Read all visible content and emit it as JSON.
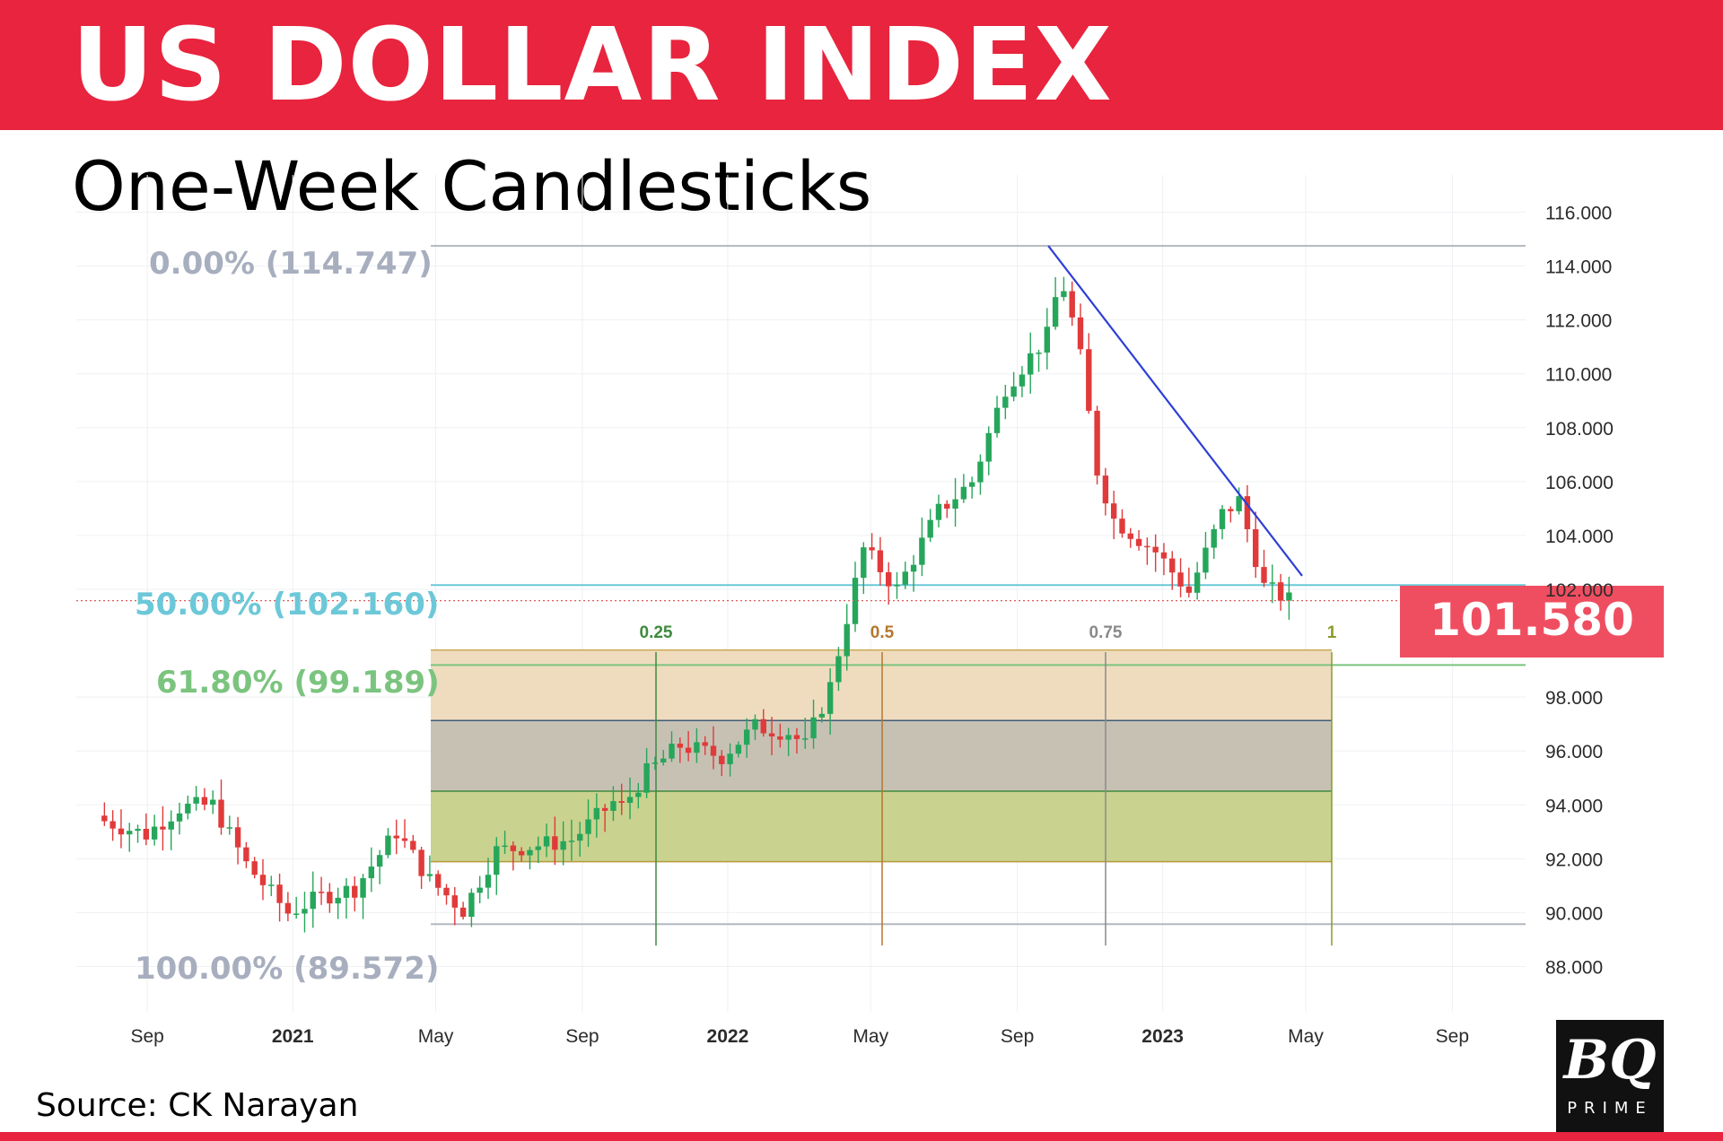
{
  "header": {
    "title": "US DOLLAR INDEX",
    "subtitle": "One-Week Candlesticks"
  },
  "footer": {
    "source": "Source: CK Narayan"
  },
  "logo": {
    "main": "BQ",
    "sub": "PRIME"
  },
  "colors": {
    "banner": "#e8243e",
    "up": "#26a65b",
    "down": "#e03a3a",
    "trendline": "#2e3fd6",
    "price_tag": "#ef4e60",
    "fib_50": "#6cc8d8",
    "fib_618": "#7bc47f",
    "fib_grey": "#a7aebe"
  },
  "chart_data": {
    "type": "candlestick",
    "ylim": [
      87.6,
      116.4
    ],
    "y_ticks": [
      "88.000",
      "90.000",
      "92.000",
      "94.000",
      "96.000",
      "98.000",
      "102.000",
      "104.000",
      "106.000",
      "108.000",
      "110.000",
      "112.000",
      "114.000",
      "116.000"
    ],
    "x_ticks": [
      "Sep",
      "2021",
      "May",
      "Sep",
      "2022",
      "May",
      "Sep",
      "2023",
      "May",
      "Sep"
    ],
    "current_price": "101.580",
    "fib_retracement": [
      {
        "label": "0.00% (114.747)",
        "level": 114.747
      },
      {
        "label": "50.00% (102.160)",
        "level": 102.16
      },
      {
        "label": "61.80% (99.189)",
        "level": 99.189
      },
      {
        "label": "100.00% (89.572)",
        "level": 89.572
      }
    ],
    "fib_time_zones": [
      "0.25",
      "0.5",
      "0.75",
      "1"
    ],
    "trendline": {
      "from": {
        "x": "2022-09-27",
        "y": 114.75
      },
      "to": {
        "x": "2023-04-28",
        "y": 102.5
      }
    },
    "ohlc_weekly_approx": [
      {
        "date": "2020-07-27",
        "close": 93.4
      },
      {
        "date": "2020-08-31",
        "close": 92.9
      },
      {
        "date": "2020-09-28",
        "close": 93.9
      },
      {
        "date": "2020-10-26",
        "close": 94.0
      },
      {
        "date": "2020-11-23",
        "close": 91.8
      },
      {
        "date": "2020-12-28",
        "close": 90.0
      },
      {
        "date": "2021-01-25",
        "close": 90.6
      },
      {
        "date": "2021-02-22",
        "close": 90.9
      },
      {
        "date": "2021-03-29",
        "close": 93.0
      },
      {
        "date": "2021-04-26",
        "close": 91.2
      },
      {
        "date": "2021-05-24",
        "close": 90.1
      },
      {
        "date": "2021-06-21",
        "close": 92.3
      },
      {
        "date": "2021-07-26",
        "close": 92.5
      },
      {
        "date": "2021-08-23",
        "close": 92.7
      },
      {
        "date": "2021-09-27",
        "close": 94.1
      },
      {
        "date": "2021-10-25",
        "close": 95.2
      },
      {
        "date": "2021-11-22",
        "close": 96.2
      },
      {
        "date": "2021-12-27",
        "close": 95.8
      },
      {
        "date": "2022-01-24",
        "close": 96.9
      },
      {
        "date": "2022-02-21",
        "close": 96.7
      },
      {
        "date": "2022-03-28",
        "close": 98.4
      },
      {
        "date": "2022-04-25",
        "close": 103.5
      },
      {
        "date": "2022-05-23",
        "close": 102.0
      },
      {
        "date": "2022-06-27",
        "close": 104.9
      },
      {
        "date": "2022-07-25",
        "close": 106.0
      },
      {
        "date": "2022-08-22",
        "close": 109.5
      },
      {
        "date": "2022-09-26",
        "close": 111.4
      },
      {
        "date": "2022-10-24",
        "close": 110.6
      },
      {
        "date": "2022-11-21",
        "close": 104.6
      },
      {
        "date": "2022-12-26",
        "close": 103.4
      },
      {
        "date": "2023-01-23",
        "close": 101.9
      },
      {
        "date": "2023-02-20",
        "close": 104.8
      },
      {
        "date": "2023-03-27",
        "close": 102.1
      },
      {
        "date": "2023-04-17",
        "close": 101.6
      }
    ]
  }
}
